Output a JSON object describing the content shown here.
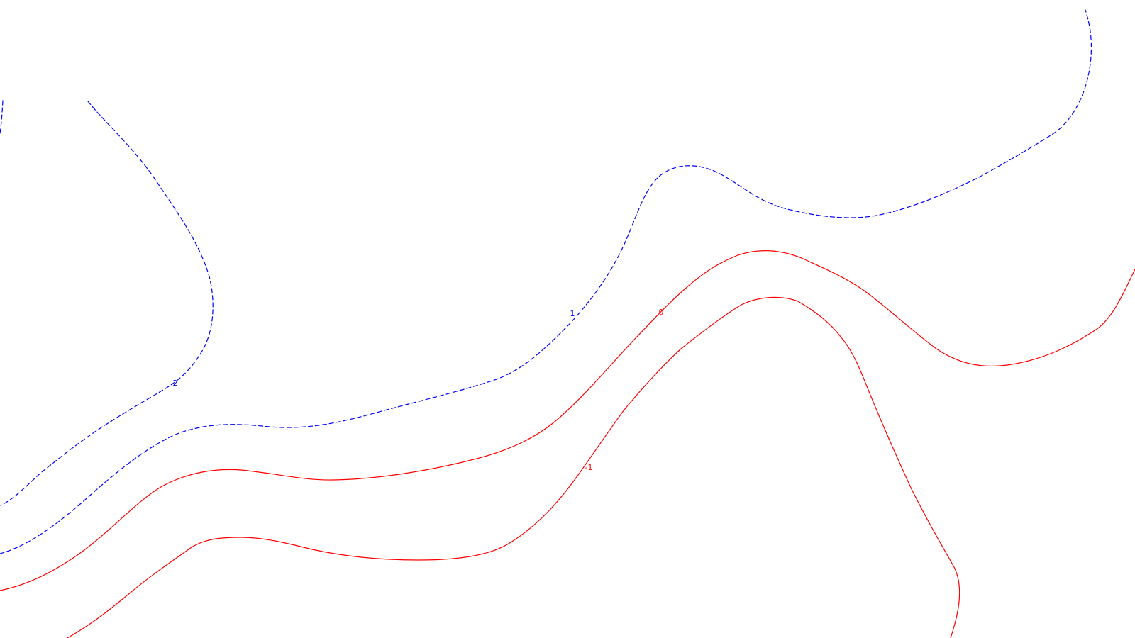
{
  "colors": {
    "negative_contour": "#ff0000",
    "positive_contour": "#0000ff",
    "background": "#ffffff"
  },
  "contours": {
    "level_2": {
      "label": "2",
      "style": "dashed",
      "color_key": "positive_contour"
    },
    "level_1": {
      "label": "1",
      "style": "dashed",
      "color_key": "positive_contour"
    },
    "level_0": {
      "label": "0",
      "style": "solid",
      "color_key": "negative_contour"
    },
    "level_neg1": {
      "label": "-1",
      "style": "solid",
      "color_key": "negative_contour"
    }
  }
}
